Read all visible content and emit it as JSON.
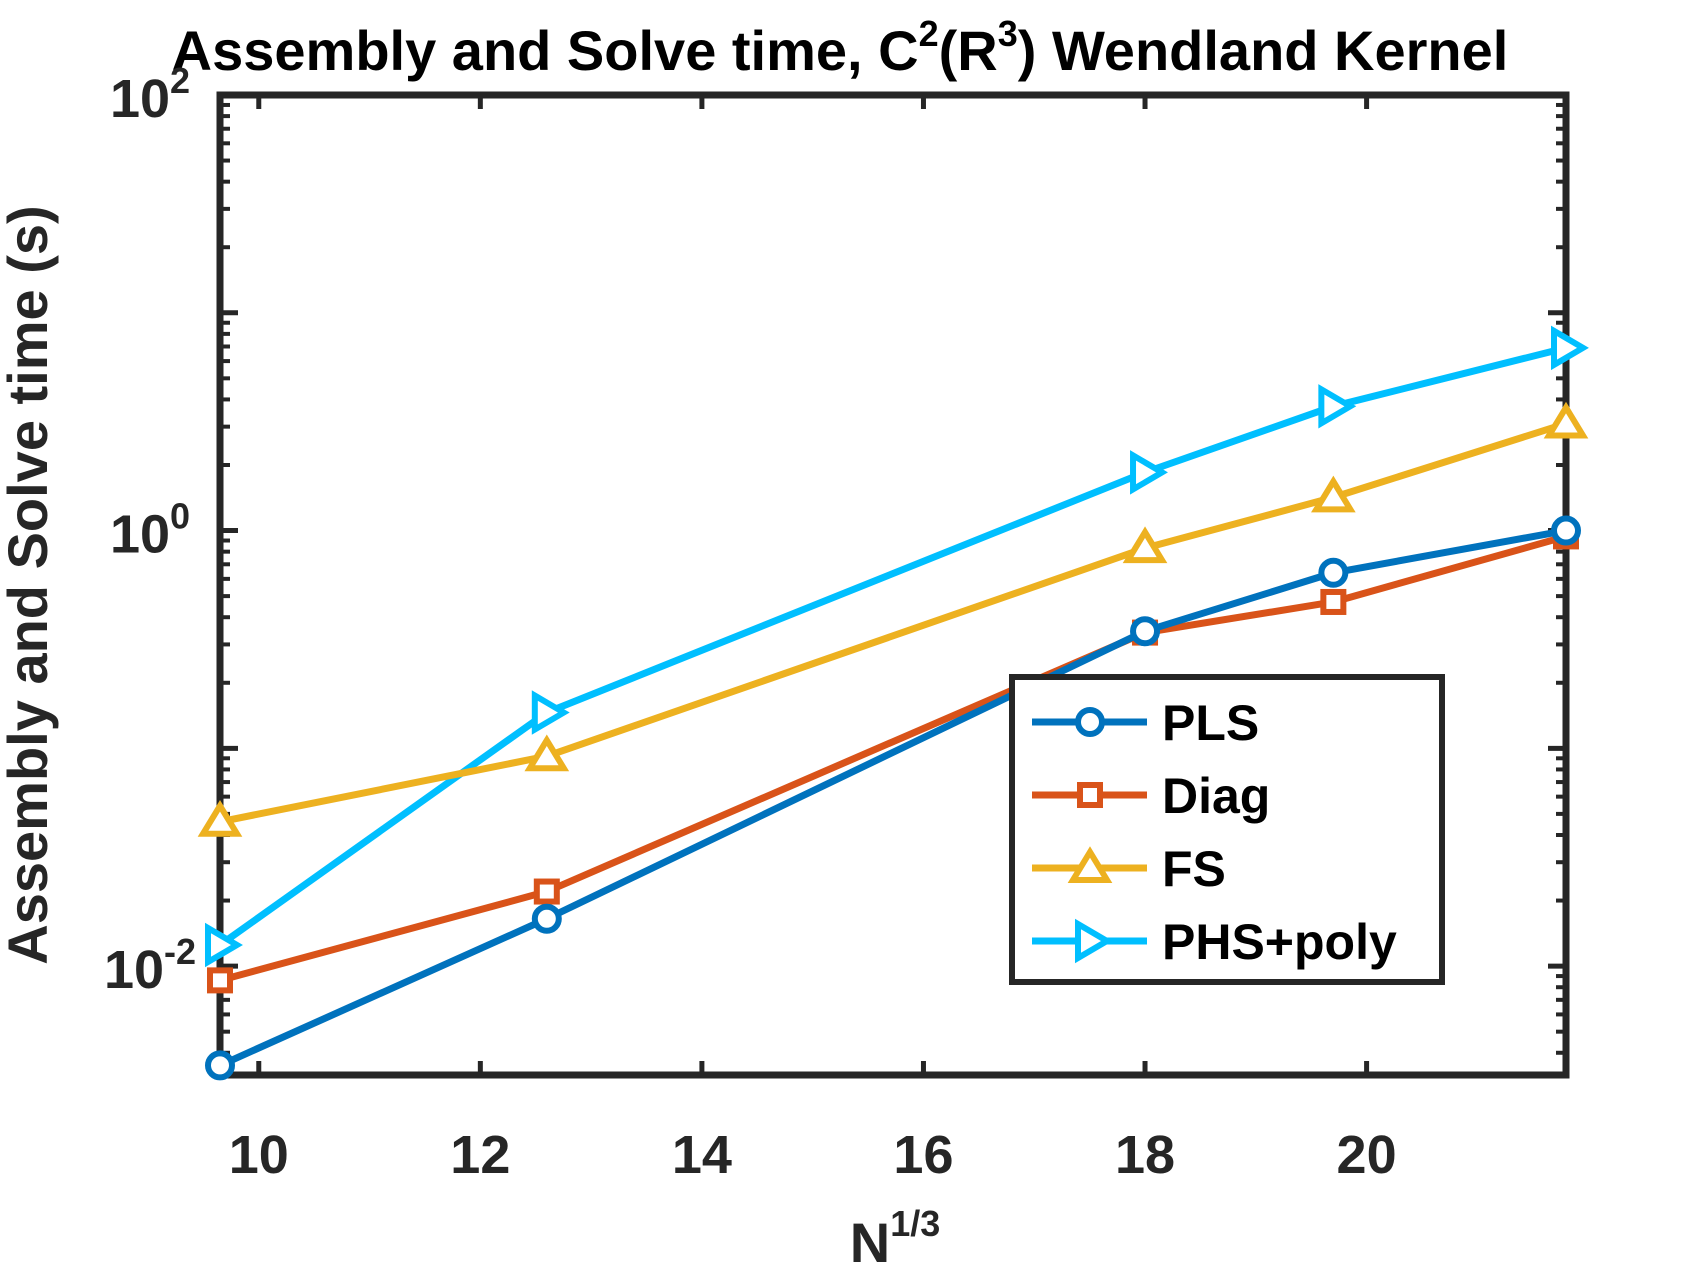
{
  "chart_data": {
    "type": "line",
    "title": {
      "prefix": "Assembly and Solve time, C",
      "sup1": "2",
      "mid": "(R",
      "sup2": "3",
      "suffix": ") Wendland Kernel"
    },
    "xlabel": {
      "base": "N",
      "sup": "1/3"
    },
    "ylabel": "Assembly and Solve time (s)",
    "yscale": "log",
    "xlim": [
      9.65,
      21.8
    ],
    "ylim_log10": [
      -2.5,
      2
    ],
    "x_ticks": [
      {
        "value": 10,
        "label": "10"
      },
      {
        "value": 12,
        "label": "12"
      },
      {
        "value": 14,
        "label": "14"
      },
      {
        "value": 16,
        "label": "16"
      },
      {
        "value": 18,
        "label": "18"
      },
      {
        "value": 20,
        "label": "20"
      }
    ],
    "y_ticks": [
      {
        "exp": 2,
        "base": "10",
        "sup": "2"
      },
      {
        "exp": 0,
        "base": "10",
        "sup": "0"
      },
      {
        "exp": -2,
        "base": "10",
        "sup": "-2"
      }
    ],
    "legend_position": "lower-right",
    "series": [
      {
        "name": "PLS",
        "color": "#0072BD",
        "marker": "circle",
        "x": [
          9.65,
          12.6,
          18.0,
          19.7,
          21.8
        ],
        "y": [
          0.0035,
          0.0165,
          0.345,
          0.64,
          1.0
        ]
      },
      {
        "name": "Diag",
        "color": "#D95319",
        "marker": "square",
        "x": [
          9.65,
          12.6,
          18.0,
          19.7,
          21.8
        ],
        "y": [
          0.0086,
          0.022,
          0.34,
          0.47,
          0.94
        ]
      },
      {
        "name": "FS",
        "color": "#EDB120",
        "marker": "triangle-up",
        "x": [
          9.65,
          12.6,
          18.0,
          19.7,
          21.8
        ],
        "y": [
          0.046,
          0.092,
          0.83,
          1.42,
          3.1
        ]
      },
      {
        "name": "PHS+poly",
        "color": "#00BFFF",
        "marker": "triangle-right",
        "x": [
          9.65,
          12.6,
          18.0,
          19.7,
          21.8
        ],
        "y": [
          0.0125,
          0.146,
          1.85,
          3.72,
          6.9
        ]
      }
    ]
  }
}
